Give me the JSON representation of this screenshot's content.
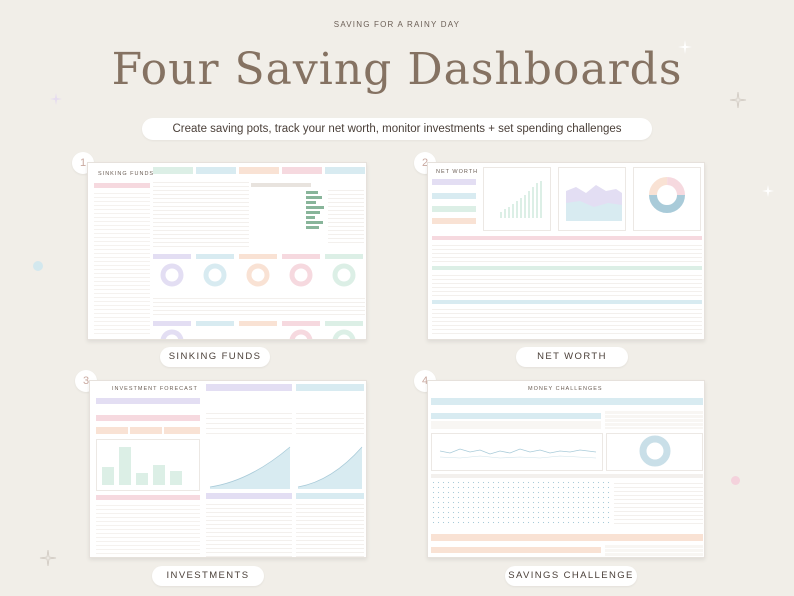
{
  "header": {
    "eyebrow": "SAVING FOR A RAINY DAY",
    "title": "Four Saving Dashboards",
    "subtitle": "Create saving pots, track your net worth, monitor investments + set spending challenges"
  },
  "panels": [
    {
      "number": "1",
      "label": "SINKING FUNDS",
      "sheet_title": "SINKING FUNDS"
    },
    {
      "number": "2",
      "label": "NET WORTH",
      "sheet_title": "NET WORTH"
    },
    {
      "number": "3",
      "label": "INVESTMENTS",
      "sheet_title": "INVESTMENT FORECAST"
    },
    {
      "number": "4",
      "label": "SAVINGS CHALLENGE",
      "sheet_title": "MONEY CHALLENGES"
    }
  ],
  "colors": {
    "background": "#f1eee8",
    "headline": "#857262",
    "pink": "#f6d9df",
    "lavender": "#e3def3",
    "mint": "#dcefe6",
    "peach": "#f9e2d4",
    "sky": "#d8ebf1",
    "sage": "#88b59a",
    "blue": "#a9cbd9"
  },
  "icons": [
    "sparkle-icon",
    "dot-icon"
  ]
}
